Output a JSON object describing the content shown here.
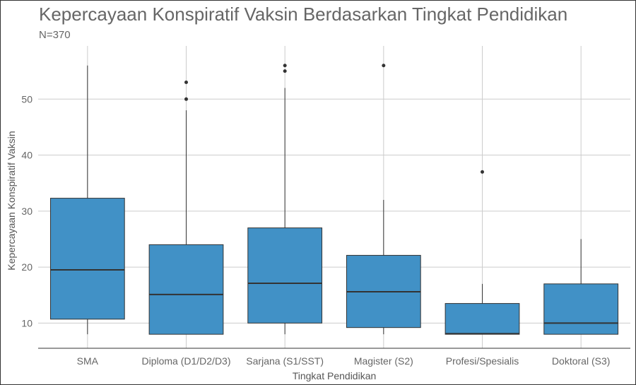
{
  "chart_data": {
    "type": "boxplot",
    "title": "Kepercayaan Konspiratif Vaksin Berdasarkan Tingkat Pendidikan",
    "subtitle": "N=370",
    "xlabel": "Tingkat Pendidikan",
    "ylabel": "Kepercayaan Konspiratif Vaksin",
    "ylim": [
      5.5,
      59.5
    ],
    "yticks": [
      10,
      20,
      30,
      40,
      50
    ],
    "grid": true,
    "box_color": "#4191C6",
    "categories": [
      "SMA",
      "Diploma (D1/D2/D3)",
      "Sarjana (S1/SST)",
      "Magister (S2)",
      "Profesi/Spesialis",
      "Doktoral (S3)"
    ],
    "boxes": [
      {
        "category": "SMA",
        "min": 8,
        "q1": 10.7,
        "median": 19.5,
        "q3": 32.3,
        "max": 56,
        "outliers": []
      },
      {
        "category": "Diploma (D1/D2/D3)",
        "min": 8,
        "q1": 8,
        "median": 15.1,
        "q3": 24,
        "max": 48,
        "outliers": [
          50,
          53
        ]
      },
      {
        "category": "Sarjana (S1/SST)",
        "min": 8,
        "q1": 10,
        "median": 17.1,
        "q3": 27,
        "max": 52,
        "outliers": [
          55,
          56
        ]
      },
      {
        "category": "Magister (S2)",
        "min": 8,
        "q1": 9.2,
        "median": 15.6,
        "q3": 22.1,
        "max": 32,
        "outliers": [
          56
        ]
      },
      {
        "category": "Profesi/Spesialis",
        "min": 8,
        "q1": 8,
        "median": 8.1,
        "q3": 13.5,
        "max": 17,
        "outliers": [
          37
        ]
      },
      {
        "category": "Doktoral (S3)",
        "min": 8,
        "q1": 8,
        "median": 10,
        "q3": 17,
        "max": 25,
        "outliers": []
      }
    ]
  }
}
